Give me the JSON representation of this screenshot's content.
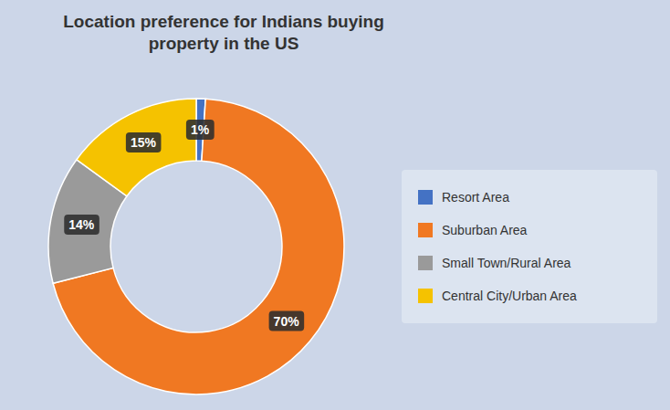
{
  "chart_data": {
    "type": "donut",
    "title": "Location preference for Indians buying\nproperty in the US",
    "categories": [
      "Resort Area",
      "Suburban Area",
      "Small Town/Rural Area",
      "Central City/Urban Area"
    ],
    "values": [
      1,
      70,
      14,
      15
    ],
    "value_labels": [
      "1%",
      "70%",
      "14%",
      "15%"
    ],
    "colors": [
      "#4472c4",
      "#f07822",
      "#9a9a9a",
      "#f5c200"
    ],
    "data_labels": true,
    "legend": "right"
  }
}
